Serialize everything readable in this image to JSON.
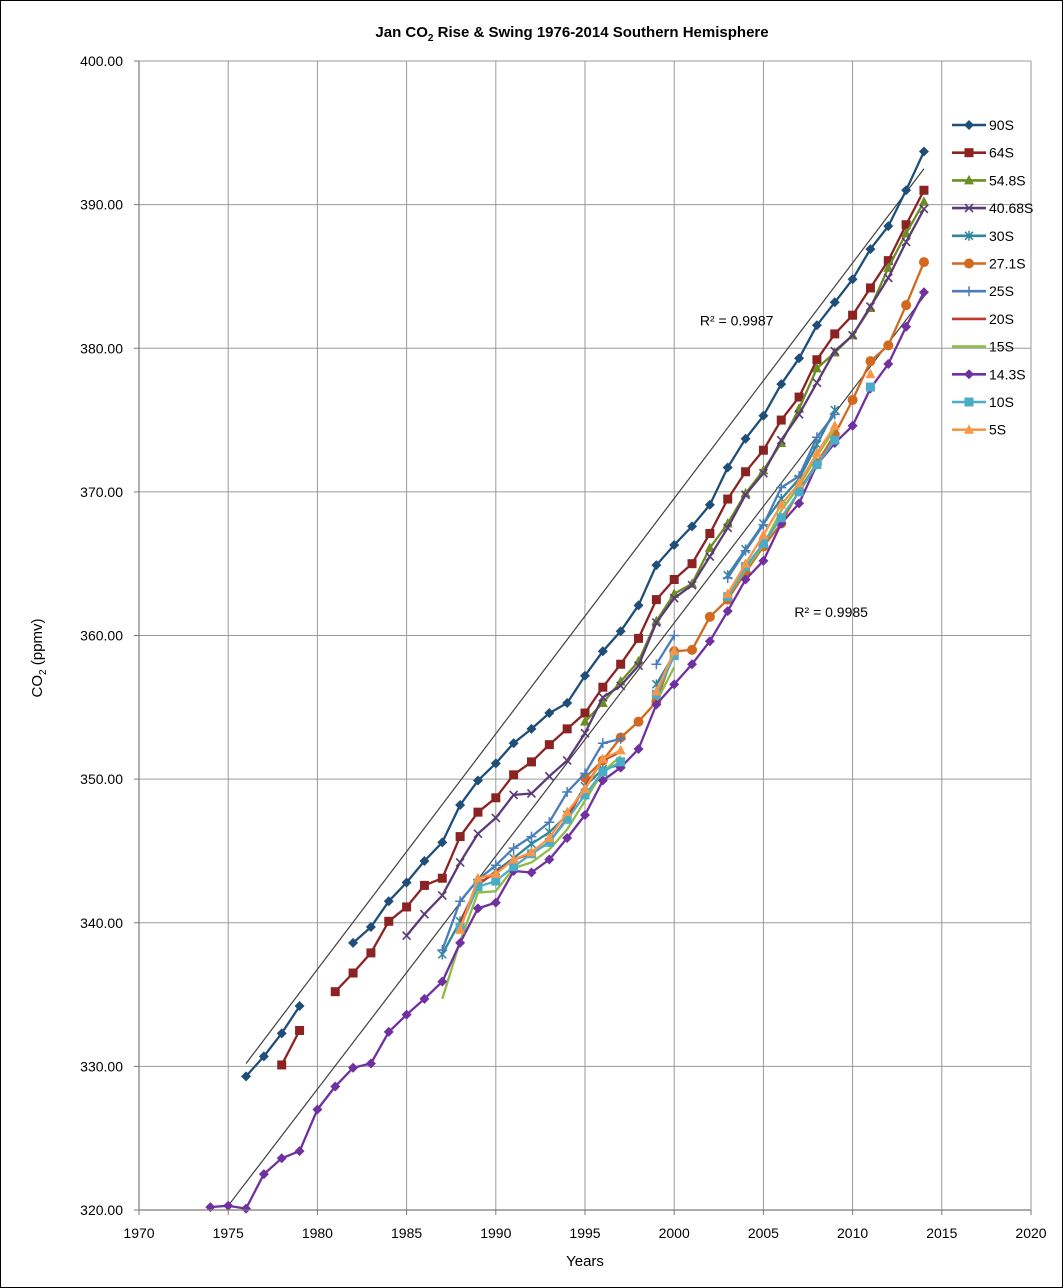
{
  "chart_data": {
    "type": "line",
    "title": "Jan CO2 Rise & Swing 1976-2014 Southern Hemisphere",
    "title_parts": {
      "before": "Jan CO",
      "sub": "2",
      "after": " Rise & Swing 1976-2014 Southern Hemisphere"
    },
    "xlabel": "Years",
    "ylabel": {
      "before": "CO",
      "sub": "2",
      "after": " (ppmv)"
    },
    "xlim": [
      1970,
      2020
    ],
    "ylim": [
      320,
      400
    ],
    "xticks": [
      "1970",
      "1975",
      "1980",
      "1985",
      "1990",
      "1995",
      "2000",
      "2005",
      "2010",
      "2015",
      "2020"
    ],
    "yticks": [
      "320.00",
      "330.00",
      "340.00",
      "350.00",
      "360.00",
      "370.00",
      "380.00",
      "390.00",
      "400.00"
    ],
    "annotations": [
      {
        "text": "R² = 0.9987",
        "x": 2003.5,
        "y": 381.6
      },
      {
        "text": "R² = 0.9985",
        "x": 2008.8,
        "y": 361.3
      }
    ],
    "trendlines": [
      {
        "x": [
          1976,
          2014
        ],
        "y": [
          330.2,
          392.5
        ]
      },
      {
        "x": [
          1975,
          2014
        ],
        "y": [
          320.3,
          383.6
        ]
      }
    ],
    "series": [
      {
        "name": "90S",
        "color": "#1f4e79",
        "marker": "diamond",
        "x": [
          1976,
          1977,
          1978,
          1979,
          null,
          1982,
          1983,
          1984,
          1985,
          1986,
          1987,
          1988,
          1989,
          1990,
          1991,
          1992,
          1993,
          1994,
          1995,
          1996,
          1997,
          1998,
          1999,
          2000,
          2001,
          2002,
          2003,
          2004,
          2005,
          2006,
          2007,
          2008,
          2009,
          2010,
          2011,
          2012,
          2013,
          2014
        ],
        "y": [
          329.3,
          330.7,
          332.3,
          334.2,
          null,
          338.6,
          339.7,
          341.5,
          342.8,
          344.3,
          345.6,
          348.2,
          349.9,
          351.1,
          352.5,
          353.5,
          354.6,
          355.3,
          357.2,
          358.9,
          360.3,
          362.1,
          364.9,
          366.3,
          367.6,
          369.1,
          371.7,
          373.7,
          375.3,
          377.5,
          379.3,
          381.6,
          383.2,
          384.8,
          386.9,
          388.5,
          391.0,
          393.7
        ]
      },
      {
        "name": "64S",
        "color": "#8b2323",
        "marker": "square",
        "x": [
          1978,
          1979,
          null,
          1981,
          1982,
          1983,
          1984,
          1985,
          1986,
          1987,
          1988,
          1989,
          1990,
          1991,
          1992,
          1993,
          1994,
          1995,
          1996,
          1997,
          1998,
          1999,
          2000,
          2001,
          2002,
          2003,
          2004,
          2005,
          2006,
          2007,
          2008,
          2009,
          2010,
          2011,
          2012,
          2013,
          2014
        ],
        "y": [
          330.1,
          332.5,
          null,
          335.2,
          336.5,
          337.9,
          340.1,
          341.1,
          342.6,
          343.1,
          346.0,
          347.7,
          348.7,
          350.3,
          351.2,
          352.4,
          353.5,
          354.6,
          356.4,
          358.0,
          359.8,
          362.5,
          363.9,
          365.0,
          367.1,
          369.5,
          371.4,
          372.9,
          375.0,
          376.6,
          379.2,
          381.0,
          382.3,
          384.2,
          386.1,
          388.6,
          391.0
        ]
      },
      {
        "name": "54.8S",
        "color": "#6b8e23",
        "marker": "triangle",
        "x": [
          1995,
          1996,
          1997,
          1998,
          1999,
          2000,
          2001,
          2002,
          2003,
          2004,
          2005,
          2006,
          2007,
          2008,
          2009,
          2010,
          2011,
          2012,
          2013,
          2014
        ],
        "y": [
          354.0,
          355.3,
          356.8,
          358.2,
          361.0,
          362.9,
          363.6,
          366.1,
          367.8,
          369.9,
          371.5,
          373.4,
          375.8,
          378.6,
          379.7,
          380.9,
          382.8,
          385.6,
          388.0,
          390.2
        ]
      },
      {
        "name": "40.68S",
        "color": "#5b3a78",
        "marker": "x",
        "x": [
          1985,
          1986,
          1987,
          1988,
          1989,
          1990,
          1991,
          1992,
          1993,
          1994,
          1995,
          1996,
          1997,
          1998,
          1999,
          2000,
          2001,
          2002,
          2003,
          2004,
          2005,
          2006,
          2007,
          2008,
          2009,
          2010,
          2011,
          2012,
          2013,
          2014
        ],
        "y": [
          339.1,
          340.6,
          341.9,
          344.2,
          346.2,
          347.3,
          348.9,
          349.0,
          350.2,
          351.3,
          353.2,
          355.7,
          356.5,
          357.9,
          360.9,
          362.6,
          363.5,
          365.5,
          367.5,
          369.8,
          371.3,
          373.6,
          375.4,
          377.6,
          379.8,
          380.9,
          382.9,
          384.9,
          387.4,
          389.7
        ]
      },
      {
        "name": "30S",
        "color": "#31859c",
        "marker": "star",
        "x": [
          1987,
          1988,
          1989,
          1990,
          1991,
          1992,
          1993,
          1994,
          1995,
          1996,
          1997,
          null,
          1999,
          2000,
          null,
          2003,
          2004,
          2005,
          2006,
          2007,
          2008,
          2009
        ],
        "y": [
          337.8,
          340.1,
          342.6,
          343.6,
          344.5,
          345.5,
          346.3,
          347.5,
          349.5,
          350.7,
          351.0,
          null,
          356.6,
          358.7,
          null,
          364.2,
          366.0,
          367.8,
          369.5,
          370.9,
          373.3,
          375.7
        ]
      },
      {
        "name": "27.1S",
        "color": "#d2691e",
        "marker": "circle",
        "x": [
          1995,
          1996,
          1997,
          1998,
          1999,
          2000,
          2001,
          2002,
          2003,
          2004,
          2005,
          2006,
          2007,
          2008,
          2009,
          2010,
          2011,
          2012,
          2013,
          2014
        ],
        "y": [
          350.1,
          351.3,
          352.9,
          354.0,
          355.4,
          358.9,
          359.0,
          361.3,
          362.5,
          364.4,
          366.2,
          367.8,
          370.1,
          372.0,
          374.0,
          376.4,
          379.1,
          380.2,
          383.0,
          386.0
        ]
      },
      {
        "name": "25S",
        "color": "#4a7ebb",
        "marker": "plus",
        "x": [
          1987,
          1988,
          1989,
          1990,
          1991,
          1992,
          1993,
          1994,
          1995,
          1996,
          1997,
          null,
          1999,
          2000,
          null,
          2003,
          2004,
          2005,
          2006,
          2007,
          2008,
          2009
        ],
        "y": [
          338.1,
          341.5,
          343.0,
          344.0,
          345.2,
          346.0,
          347.0,
          349.1,
          350.4,
          352.5,
          352.8,
          null,
          358.0,
          360.0,
          null,
          364.0,
          365.9,
          367.7,
          370.3,
          371.1,
          373.8,
          375.4
        ]
      },
      {
        "name": "20S",
        "color": "#c0392b",
        "marker": "none",
        "x": [
          1988,
          1989,
          1990,
          1991,
          1992,
          1993,
          1994,
          1995,
          1996,
          1997
        ],
        "y": [
          340.0,
          342.7,
          343.5,
          344.4,
          344.8,
          345.6,
          347.3,
          349.5,
          351.3,
          351.9
        ]
      },
      {
        "name": "15S",
        "color": "#8fbc45",
        "marker": "none",
        "x": [
          1987,
          1988,
          1989,
          1990,
          1991,
          1992,
          1993,
          1994,
          1995,
          1996,
          1997,
          null,
          1999,
          2000,
          null,
          2003,
          2004,
          2005,
          2006,
          2007,
          2008,
          2009,
          null,
          2011
        ],
        "y": [
          334.7,
          338.7,
          342.1,
          342.2,
          343.8,
          344.2,
          345.1,
          346.5,
          348.5,
          350.5,
          351.6,
          null,
          355.4,
          357.8,
          null,
          362.7,
          364.6,
          366.3,
          368.7,
          370.4,
          372.5,
          374.4,
          null,
          377.0
        ]
      },
      {
        "name": "14.3S",
        "color": "#7030a0",
        "marker": "diamond",
        "x": [
          1974,
          1975,
          1976,
          1977,
          1978,
          1979,
          1980,
          1981,
          1982,
          1983,
          1984,
          1985,
          1986,
          1987,
          1988,
          1989,
          1990,
          1991,
          1992,
          1993,
          1994,
          1995,
          1996,
          1997,
          1998,
          1999,
          2000,
          2001,
          2002,
          2003,
          2004,
          2005,
          2006,
          2007,
          2008,
          2009,
          2010,
          2011,
          2012,
          2013,
          2014
        ],
        "y": [
          320.2,
          320.3,
          320.1,
          322.5,
          323.6,
          324.1,
          327.0,
          328.6,
          329.9,
          330.2,
          332.4,
          333.6,
          334.7,
          335.9,
          338.6,
          341.0,
          341.4,
          343.6,
          343.5,
          344.4,
          345.9,
          347.5,
          349.9,
          350.8,
          352.1,
          355.2,
          356.6,
          358.0,
          359.6,
          361.7,
          363.9,
          365.2,
          367.8,
          369.2,
          371.9,
          373.4,
          374.6,
          377.2,
          378.9,
          381.5,
          383.9
        ]
      },
      {
        "name": "10S",
        "color": "#4bacc6",
        "marker": "square",
        "x": [
          1988,
          1989,
          1990,
          1991,
          1992,
          1993,
          1994,
          1995,
          1996,
          1997,
          null,
          1999,
          2000,
          null,
          2003,
          2004,
          2005,
          2006,
          2007,
          2008,
          2009,
          null,
          2011
        ],
        "y": [
          339.7,
          342.5,
          342.9,
          343.9,
          344.8,
          345.6,
          347.2,
          348.9,
          350.5,
          351.2,
          null,
          355.9,
          358.6,
          null,
          362.7,
          364.8,
          366.4,
          368.2,
          370.0,
          371.9,
          373.6,
          null,
          377.3
        ]
      },
      {
        "name": "5S",
        "color": "#f79646",
        "marker": "triangle",
        "x": [
          1988,
          1989,
          1990,
          1991,
          1992,
          1993,
          1994,
          1995,
          1996,
          1997,
          null,
          1999,
          2000,
          null,
          2003,
          2004,
          2005,
          2006,
          2007,
          2008,
          2009,
          null,
          2011
        ],
        "y": [
          339.5,
          343.1,
          343.4,
          344.4,
          344.9,
          345.9,
          347.7,
          349.3,
          351.4,
          352.0,
          null,
          356.1,
          358.9,
          null,
          362.9,
          365.0,
          367.0,
          369.1,
          370.6,
          372.7,
          374.6,
          null,
          378.2
        ]
      }
    ]
  }
}
